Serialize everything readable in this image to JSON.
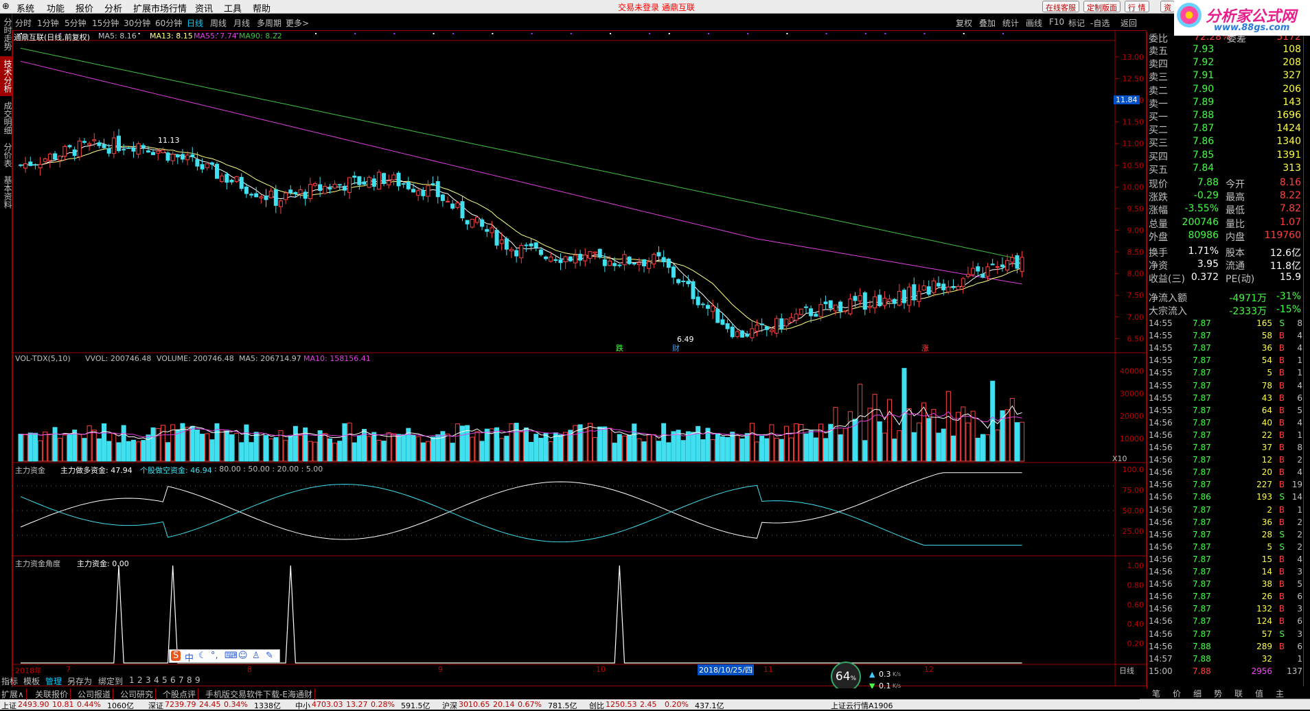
{
  "menu": {
    "items": [
      "系统",
      "功能",
      "报价",
      "分析",
      "扩展市场行情",
      "资讯",
      "工具",
      "帮助"
    ],
    "center_text": "交易未登录  通鼎互联",
    "right_buttons": [
      "在线客服",
      "定制版面",
      "行  情",
      "资"
    ]
  },
  "logo": {
    "title": "分析家公式网",
    "url_text": "www.88gs.com"
  },
  "left_tabs": [
    "分时走势",
    "技术分析",
    "成交明细",
    "分价表",
    "基本资料"
  ],
  "periods": [
    "分时",
    "1分钟",
    "5分钟",
    "15分钟",
    "30分钟",
    "60分钟",
    "日线",
    "周线",
    "月线",
    "多周期",
    "更多>"
  ],
  "active_period": "日线",
  "toolbar_right": [
    "复权",
    "叠加",
    "统计",
    "画线",
    "F10",
    "标记",
    "-自选",
    "返回"
  ],
  "main": {
    "title": "通鼎互联(日线,前复权)",
    "ma5_label": "MA5: 8.16",
    "ma13_label": "MA13: 8.15",
    "ma55_label": "MA55: 7.74",
    "ma90_label": "MA90: 8.22",
    "price_ticks": [
      "13.00",
      "12.50",
      "12.00",
      "11.50",
      "11.00",
      "10.50",
      "10.00",
      "9.50",
      "9.00",
      "8.50",
      "8.00",
      "7.50",
      "7.00",
      "6.50"
    ],
    "cursor_price": "11.84",
    "high_annot": "11.13",
    "low_annot": "6.49",
    "markers": [
      "跌",
      "财",
      "涨"
    ],
    "colors": {
      "ma5": "#ffffff",
      "ma13": "#ffff80",
      "ma55": "#e040e0",
      "ma90": "#40c040",
      "up": "#ff4040",
      "down": "#40e0f0"
    }
  },
  "volume": {
    "title": "VOL-TDX(5,10)",
    "vvol": "VVOL: 200746.48",
    "volume": "VOLUME: 200746.48",
    "ma5": "MA5: 206714.97",
    "ma10": "MA10: 158156.41",
    "ticks": [
      "40000",
      "30000",
      "20000",
      "10000"
    ],
    "unit": "X10"
  },
  "fund": {
    "title": "主力资金",
    "long": "主力做多资金: 47.94",
    "short": "个股做空资金: 46.94",
    "levels": ": 80.00 : 50.00 : 20.00 : 5.00",
    "ticks": [
      "100.0",
      "75.00",
      "50.00",
      "25.00"
    ]
  },
  "angle": {
    "title": "主力资金角度",
    "value": "主力资金: 0.00",
    "ticks": [
      "1.00",
      "0.80",
      "0.60",
      "0.40",
      "0.20"
    ]
  },
  "xaxis": {
    "labels": [
      "2018年",
      "7",
      "8",
      "9",
      "10",
      "11",
      "12"
    ],
    "cursor_date": "2018/10/25/四",
    "period": "日线"
  },
  "quote": {
    "weibi": {
      "label": "委比",
      "value": "72.28%",
      "label2": "委差",
      "value2": "5172"
    },
    "sells": [
      {
        "l": "卖五",
        "p": "7.93",
        "v": "108"
      },
      {
        "l": "卖四",
        "p": "7.92",
        "v": "208"
      },
      {
        "l": "卖三",
        "p": "7.91",
        "v": "327"
      },
      {
        "l": "卖二",
        "p": "7.90",
        "v": "206"
      },
      {
        "l": "卖一",
        "p": "7.89",
        "v": "143"
      }
    ],
    "buys": [
      {
        "l": "买一",
        "p": "7.88",
        "v": "1696"
      },
      {
        "l": "买二",
        "p": "7.87",
        "v": "1424"
      },
      {
        "l": "买三",
        "p": "7.86",
        "v": "1340"
      },
      {
        "l": "买四",
        "p": "7.85",
        "v": "1391"
      },
      {
        "l": "买五",
        "p": "7.84",
        "v": "313"
      }
    ],
    "stats": [
      {
        "l1": "现价",
        "v1": "7.88",
        "l2": "今开",
        "v2": "8.16"
      },
      {
        "l1": "涨跌",
        "v1": "-0.29",
        "l2": "最高",
        "v2": "8.22"
      },
      {
        "l1": "涨幅",
        "v1": "-3.55%",
        "l2": "最低",
        "v2": "7.82"
      },
      {
        "l1": "总量",
        "v1": "200746",
        "l2": "量比",
        "v2": "1.07"
      },
      {
        "l1": "外盘",
        "v1": "80986",
        "l2": "内盘",
        "v2": "119760"
      }
    ],
    "stats2": [
      {
        "l1": "换手",
        "v1": "1.71%",
        "l2": "股本",
        "v2": "12.6亿"
      },
      {
        "l1": "净资",
        "v1": "3.95",
        "l2": "流通",
        "v2": "11.8亿"
      },
      {
        "l1": "收益(三)",
        "v1": "0.372",
        "l2": "PE(动)",
        "v2": "15.9"
      }
    ],
    "flows": [
      {
        "l": "净流入额",
        "v": "-4971万",
        "p": "-31%"
      },
      {
        "l": "大宗流入",
        "v": "-2333万",
        "p": "-15%"
      }
    ]
  },
  "ticks": [
    {
      "t": "14:55",
      "p": "7.87",
      "v": "165",
      "s": "S",
      "n": "8"
    },
    {
      "t": "14:55",
      "p": "7.87",
      "v": "58",
      "s": "B",
      "n": "4"
    },
    {
      "t": "14:55",
      "p": "7.87",
      "v": "36",
      "s": "B",
      "n": "4"
    },
    {
      "t": "14:55",
      "p": "7.87",
      "v": "54",
      "s": "B",
      "n": "1"
    },
    {
      "t": "14:55",
      "p": "7.87",
      "v": "5",
      "s": "B",
      "n": "1"
    },
    {
      "t": "14:55",
      "p": "7.87",
      "v": "78",
      "s": "B",
      "n": "4"
    },
    {
      "t": "14:55",
      "p": "7.87",
      "v": "43",
      "s": "B",
      "n": "6"
    },
    {
      "t": "14:55",
      "p": "7.87",
      "v": "64",
      "s": "B",
      "n": "5"
    },
    {
      "t": "14:56",
      "p": "7.87",
      "v": "40",
      "s": "B",
      "n": "4"
    },
    {
      "t": "14:56",
      "p": "7.87",
      "v": "22",
      "s": "B",
      "n": "1"
    },
    {
      "t": "14:56",
      "p": "7.87",
      "v": "37",
      "s": "B",
      "n": "8"
    },
    {
      "t": "14:56",
      "p": "7.87",
      "v": "12",
      "s": "B",
      "n": "2"
    },
    {
      "t": "14:56",
      "p": "7.87",
      "v": "20",
      "s": "B",
      "n": "4"
    },
    {
      "t": "14:56",
      "p": "7.87",
      "v": "227",
      "s": "B",
      "n": "19"
    },
    {
      "t": "14:56",
      "p": "7.86",
      "v": "193",
      "s": "S",
      "n": "14"
    },
    {
      "t": "14:56",
      "p": "7.87",
      "v": "2",
      "s": "B",
      "n": "1"
    },
    {
      "t": "14:56",
      "p": "7.87",
      "v": "36",
      "s": "B",
      "n": "2"
    },
    {
      "t": "14:56",
      "p": "7.87",
      "v": "28",
      "s": "S",
      "n": "2"
    },
    {
      "t": "14:56",
      "p": "7.87",
      "v": "5",
      "s": "S",
      "n": "2"
    },
    {
      "t": "14:56",
      "p": "7.87",
      "v": "15",
      "s": "B",
      "n": "4"
    },
    {
      "t": "14:56",
      "p": "7.87",
      "v": "14",
      "s": "B",
      "n": "3"
    },
    {
      "t": "14:56",
      "p": "7.87",
      "v": "38",
      "s": "B",
      "n": "5"
    },
    {
      "t": "14:56",
      "p": "7.87",
      "v": "26",
      "s": "B",
      "n": "6"
    },
    {
      "t": "14:56",
      "p": "7.87",
      "v": "132",
      "s": "B",
      "n": "3"
    },
    {
      "t": "14:56",
      "p": "7.87",
      "v": "124",
      "s": "B",
      "n": "6"
    },
    {
      "t": "14:56",
      "p": "7.87",
      "v": "57",
      "s": "S",
      "n": "3"
    },
    {
      "t": "14:56",
      "p": "7.88",
      "v": "289",
      "s": "B",
      "n": "6"
    },
    {
      "t": "14:57",
      "p": "7.88",
      "v": "32",
      "s": "",
      "n": "1"
    },
    {
      "t": "15:00",
      "p": "7.88",
      "v": "2956",
      "s": "",
      "n": "137"
    }
  ],
  "ime": {
    "text": "中"
  },
  "bottom_tabs": [
    "指标",
    "模板",
    "管理",
    "另存为",
    "绑定到",
    "1",
    "2",
    "3",
    "4",
    "5",
    "6",
    "7",
    "8",
    "9"
  ],
  "bottom_tabs2": [
    "扩展∧",
    "关联报价",
    "公司报道",
    "公司研究",
    "个股点评",
    "手机版交易软件下载-E海通财"
  ],
  "right_tabs": [
    "笔",
    "价",
    "细",
    "势",
    "联",
    "值",
    "主"
  ],
  "speed": {
    "pct": "64",
    "up": "0.3",
    "down": "0.1",
    "unit": "K/s"
  },
  "status": [
    {
      "name": "上证",
      "val": "2493.90",
      "chg": "10.81",
      "pct": "0.44%",
      "amt": "1060亿"
    },
    {
      "name": "深证",
      "val": "7239.79",
      "chg": "24.45",
      "pct": "0.34%",
      "amt": "1338亿"
    },
    {
      "name": "中小",
      "val": "4703.03",
      "chg": "13.27",
      "pct": "0.28%",
      "amt": "591.5亿"
    },
    {
      "name": "沪深",
      "val": "3010.65",
      "chg": "20.14",
      "pct": "0.67%",
      "amt": "781.5亿"
    },
    {
      "name": "创比",
      "val": "1250.53",
      "chg": "2.45",
      "pct": "0.20%",
      "amt": "437.1亿"
    }
  ],
  "status_right": "上证云行情A1906"
}
